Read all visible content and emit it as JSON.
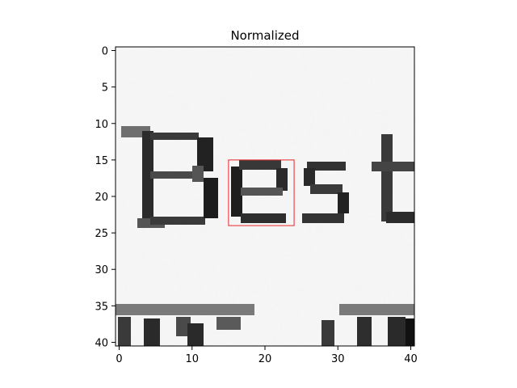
{
  "chart_data": {
    "type": "heatmap",
    "title": "Normalized",
    "colormap": "gray",
    "image_content": "grayscale crop of printed text reading Best",
    "grid_shape": [
      41,
      41
    ],
    "xlim": [
      -0.5,
      40.5
    ],
    "ylim": [
      40.5,
      -0.5
    ],
    "y_axis_inverted": true,
    "xticks": [
      0,
      10,
      20,
      30,
      40
    ],
    "xtick_labels": [
      "0",
      "10",
      "20",
      "30",
      "40"
    ],
    "yticks": [
      0,
      5,
      10,
      15,
      20,
      25,
      30,
      35,
      40
    ],
    "ytick_labels": [
      "0",
      "5",
      "10",
      "15",
      "20",
      "25",
      "30",
      "35",
      "40"
    ],
    "highlight_box": {
      "x_min": 15,
      "x_max": 24,
      "y_min": 15,
      "y_max": 24,
      "color": "#e8262a"
    },
    "grid": false,
    "legend": "none"
  }
}
